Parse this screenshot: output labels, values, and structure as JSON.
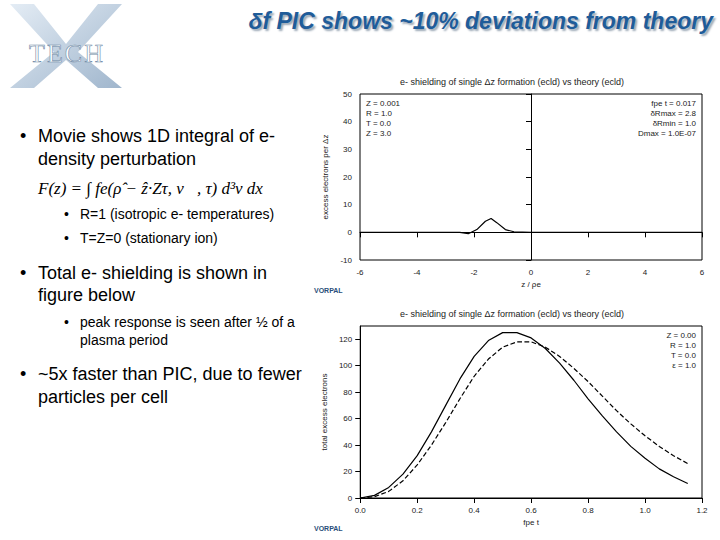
{
  "slide": {
    "title": "δf PIC shows ~10% deviations from theory",
    "logo": "TECH",
    "bullets": [
      {
        "text": "Movie shows 1D integral of e- density perturbation",
        "formula": "F(z) = ∫ fe(ρ̂ − ẑ·Zτ, v⃗, τ) d³v dx",
        "sub": [
          "R=1 (isotropic e- temperatures)",
          "T=Z=0 (stationary ion)"
        ]
      },
      {
        "text": "Total e- shielding is shown in figure below",
        "sub": [
          "peak response is seen after ½ of a plasma period"
        ]
      },
      {
        "text": "~5x faster than PIC, due to fewer particles per cell",
        "sub": []
      }
    ]
  },
  "chart_data": [
    {
      "type": "line",
      "title": "e- shielding of single Δz formation (ecld) vs theory (ecld)",
      "x_label": "z / ρe",
      "y_label": "excess electrons per Δz",
      "xlim": [
        -6,
        6
      ],
      "xticks": [
        -6,
        -4,
        -2,
        0,
        2,
        4,
        6
      ],
      "ylim": [
        -10,
        50
      ],
      "yticks": [
        -10,
        0,
        10,
        20,
        30,
        40,
        50
      ],
      "x": [
        -6,
        -4,
        -3,
        -2.5,
        -2.2,
        -1.9,
        -1.6,
        -1.4,
        -1.2,
        -0.9,
        -0.6,
        0,
        2,
        4,
        6
      ],
      "series": [
        {
          "color": "#000000",
          "line_style": "solid",
          "values": [
            0,
            0,
            0,
            0,
            -0.5,
            1,
            4,
            5,
            3.5,
            1,
            0.2,
            0,
            0,
            0,
            0
          ]
        }
      ],
      "annotations": [
        [
          "Z = 0.001",
          "R = 1.0",
          "T = 0.0",
          "Z = 3.0"
        ],
        [
          "fpe t = 0.017",
          "δRmax = 2.8",
          "δRmin = 1.0",
          "Dmax = 1.0E-07"
        ]
      ],
      "footer": "VORPAL"
    },
    {
      "type": "line",
      "title": "e- shielding of single Δz formation (ecld) vs theory (ecld)",
      "x_label": "fpe t",
      "y_label": "total excess electrons",
      "xlim": [
        0,
        1.2
      ],
      "xticks": [
        {
          "value": 0,
          "label": "0.0"
        },
        0.2,
        0.4,
        0.6,
        0.8,
        {
          "value": 1,
          "label": "1.0"
        },
        1.2
      ],
      "ylim": [
        0,
        130
      ],
      "yticks": [
        0,
        20,
        40,
        60,
        80,
        100,
        120
      ],
      "x": [
        0,
        0.05,
        0.1,
        0.15,
        0.2,
        0.25,
        0.3,
        0.35,
        0.4,
        0.45,
        0.5,
        0.55,
        0.6,
        0.65,
        0.7,
        0.75,
        0.8,
        0.85,
        0.9,
        0.95,
        1.0,
        1.05,
        1.1,
        1.15
      ],
      "series": [
        {
          "color": "#000000",
          "line_style": "solid",
          "values": [
            0,
            2,
            8,
            18,
            32,
            50,
            70,
            90,
            107,
            119,
            125,
            125,
            121,
            113,
            102,
            89,
            75,
            62,
            50,
            39,
            30,
            22,
            16,
            11
          ]
        },
        {
          "color": "#000000",
          "line_style": "dashed",
          "values": [
            0,
            1,
            5,
            13,
            25,
            40,
            57,
            75,
            92,
            105,
            114,
            118,
            118,
            114,
            107,
            98,
            88,
            77,
            66,
            56,
            47,
            39,
            32,
            26
          ]
        }
      ],
      "annotations": [
        [
          "Z = 0.00",
          "R = 1.0",
          "T = 0.0",
          "ε = 1.0"
        ]
      ],
      "footer": "VORPAL"
    }
  ]
}
